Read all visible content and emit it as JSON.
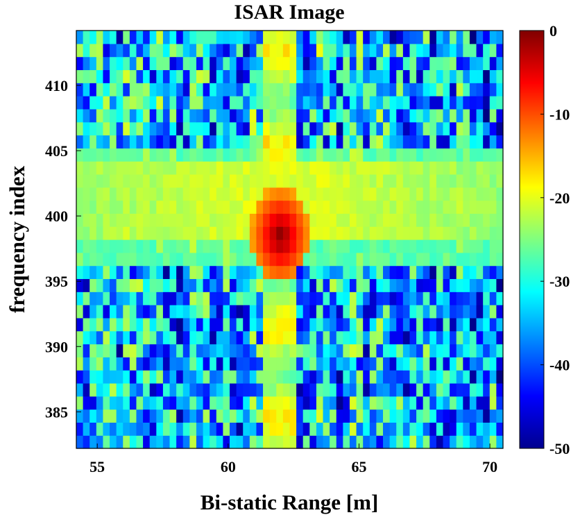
{
  "chart_data": {
    "type": "heatmap",
    "title": "ISAR Image",
    "xlabel": "Bi-static Range [m]",
    "ylabel": "frequency index",
    "xlim": [
      54.2,
      70.5
    ],
    "ylim": [
      382.2,
      414.2
    ],
    "x_ticks": [
      55,
      60,
      65,
      70
    ],
    "y_ticks": [
      385,
      390,
      395,
      400,
      405,
      410
    ],
    "colorbar": {
      "range": [
        -50,
        0
      ],
      "ticks": [
        0,
        -10,
        -20,
        -30,
        -40,
        -50
      ],
      "colormap": "jet"
    },
    "features": {
      "peak": {
        "x": 62.0,
        "y": 398.5,
        "value_db": 0
      },
      "bright_range_column_x": 62.0,
      "bright_frequency_band": [
        398,
        404
      ],
      "background_level_db": -35
    }
  }
}
